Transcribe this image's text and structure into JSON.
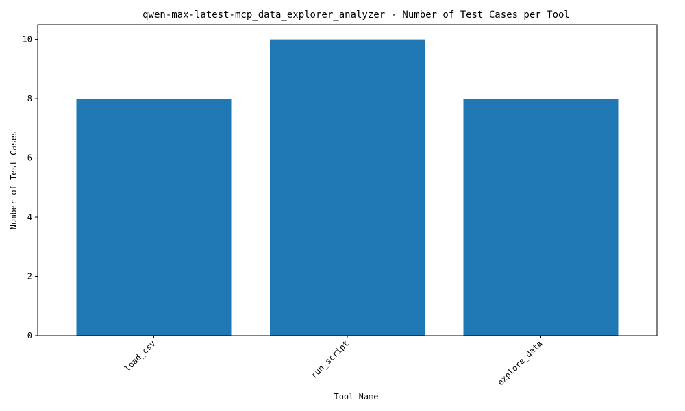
{
  "chart_data": {
    "type": "bar",
    "title": "qwen-max-latest-mcp_data_explorer_analyzer - Number of Test Cases per Tool",
    "xlabel": "Tool Name",
    "ylabel": "Number of Test Cases",
    "categories": [
      "load_csv",
      "run_script",
      "explore_data"
    ],
    "values": [
      8,
      10,
      8
    ],
    "ylim": [
      0,
      10.5
    ],
    "yticks": [
      "0",
      "2",
      "4",
      "6",
      "8",
      "10"
    ],
    "bar_color": "#1f77b4",
    "grid": false,
    "legend": "none"
  }
}
